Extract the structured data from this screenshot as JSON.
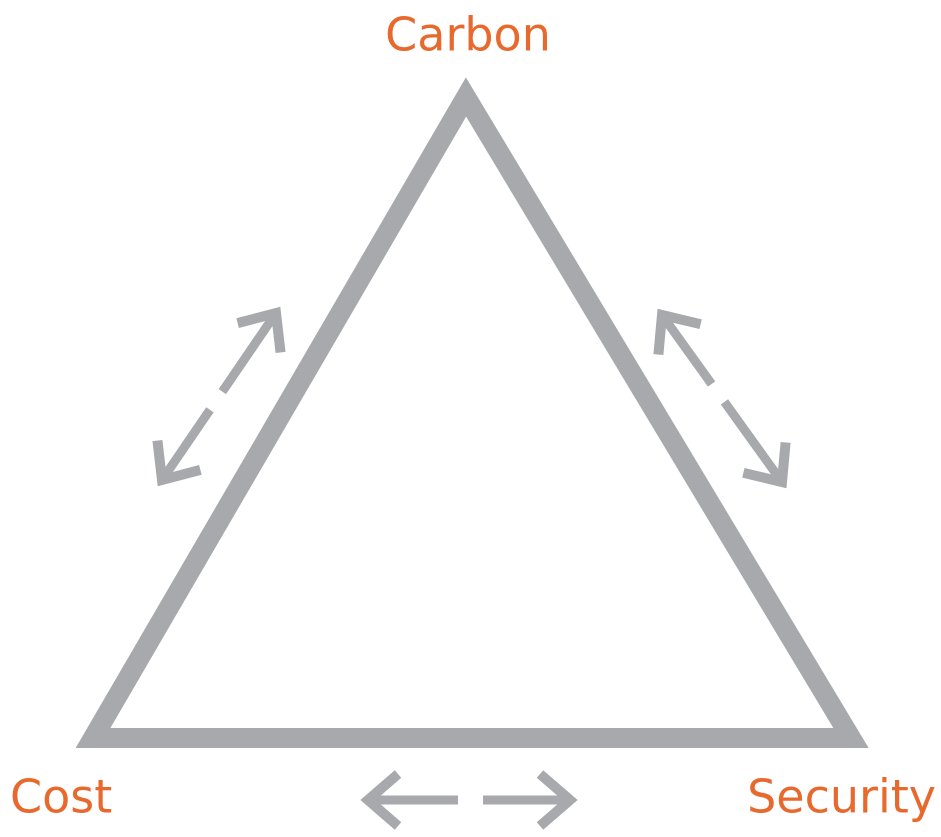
{
  "nodes": [
    {
      "label": "Carbon"
    },
    {
      "label": "Cost"
    },
    {
      "label": "Security"
    }
  ]
}
